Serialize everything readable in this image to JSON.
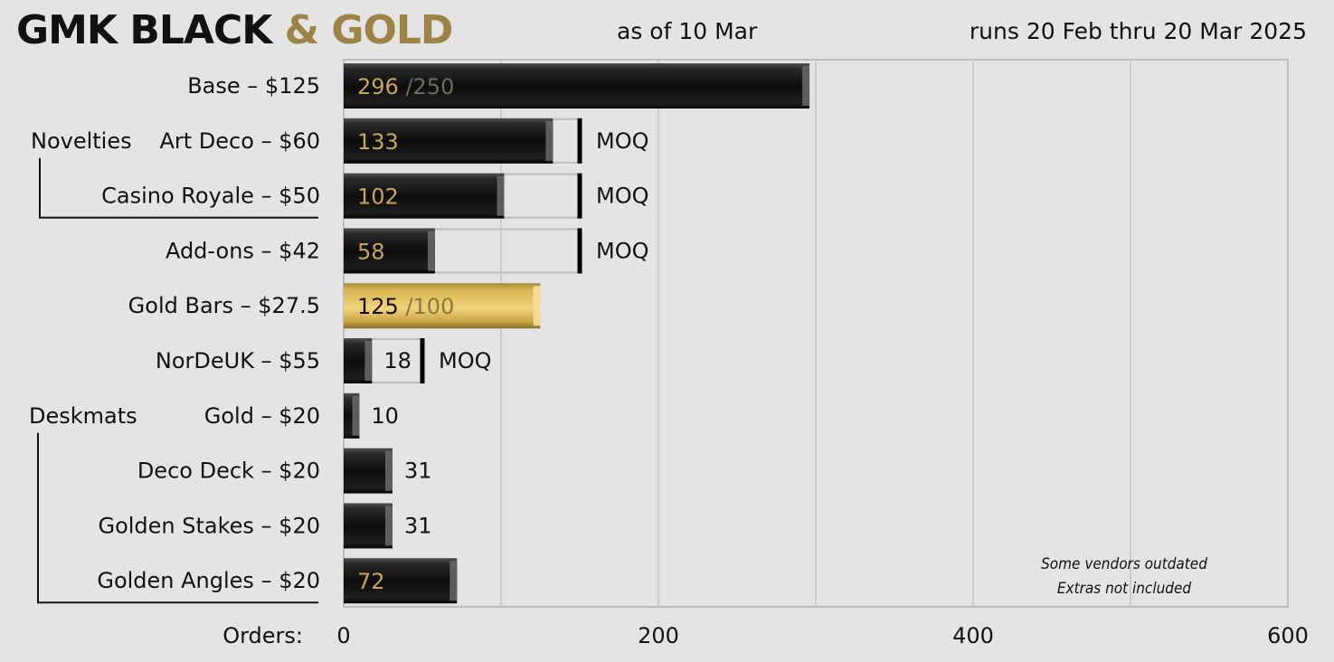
{
  "header": {
    "title_part1": "GMK BLACK",
    "title_part2": "& GOLD",
    "as_of": "as of 10 Mar",
    "runs": "runs 20 Feb thru 20 Mar 2025"
  },
  "chart_data": {
    "type": "bar",
    "orientation": "horizontal",
    "xlabel": "Orders:",
    "xlim": [
      0,
      600
    ],
    "xticks": [
      0,
      200,
      400,
      600
    ],
    "grid": true,
    "categories": [
      "Base – $125",
      "Art Deco – $60",
      "Casino Royale – $50",
      "Add-ons – $42",
      "Gold Bars – $27.5",
      "NorDeUK – $55",
      "Gold – $20",
      "Deco Deck – $20",
      "Golden Stakes – $20",
      "Golden Angles – $20"
    ],
    "values": [
      296,
      133,
      102,
      58,
      125,
      18,
      10,
      31,
      31,
      72
    ],
    "moq": [
      250,
      150,
      150,
      150,
      100,
      50,
      null,
      null,
      null,
      null
    ],
    "moq_label": "MOQ",
    "moq_shown_as_fraction": [
      true,
      false,
      false,
      false,
      true,
      false,
      false,
      false,
      false,
      false
    ],
    "bar_style": [
      "black",
      "black",
      "black",
      "black",
      "gold",
      "black",
      "black",
      "black",
      "black",
      "black"
    ],
    "groups": [
      {
        "label": "Novelties",
        "start": 1,
        "end": 2
      },
      {
        "label": "Deskmats",
        "start": 6,
        "end": 9
      }
    ],
    "annotations": [
      "Some vendors outdated",
      "Extras not included"
    ],
    "colors": {
      "bar": "#111111",
      "gold_bar": "#d8b550",
      "value_text": "#c7a45a",
      "background": "#e4e4e4"
    }
  }
}
